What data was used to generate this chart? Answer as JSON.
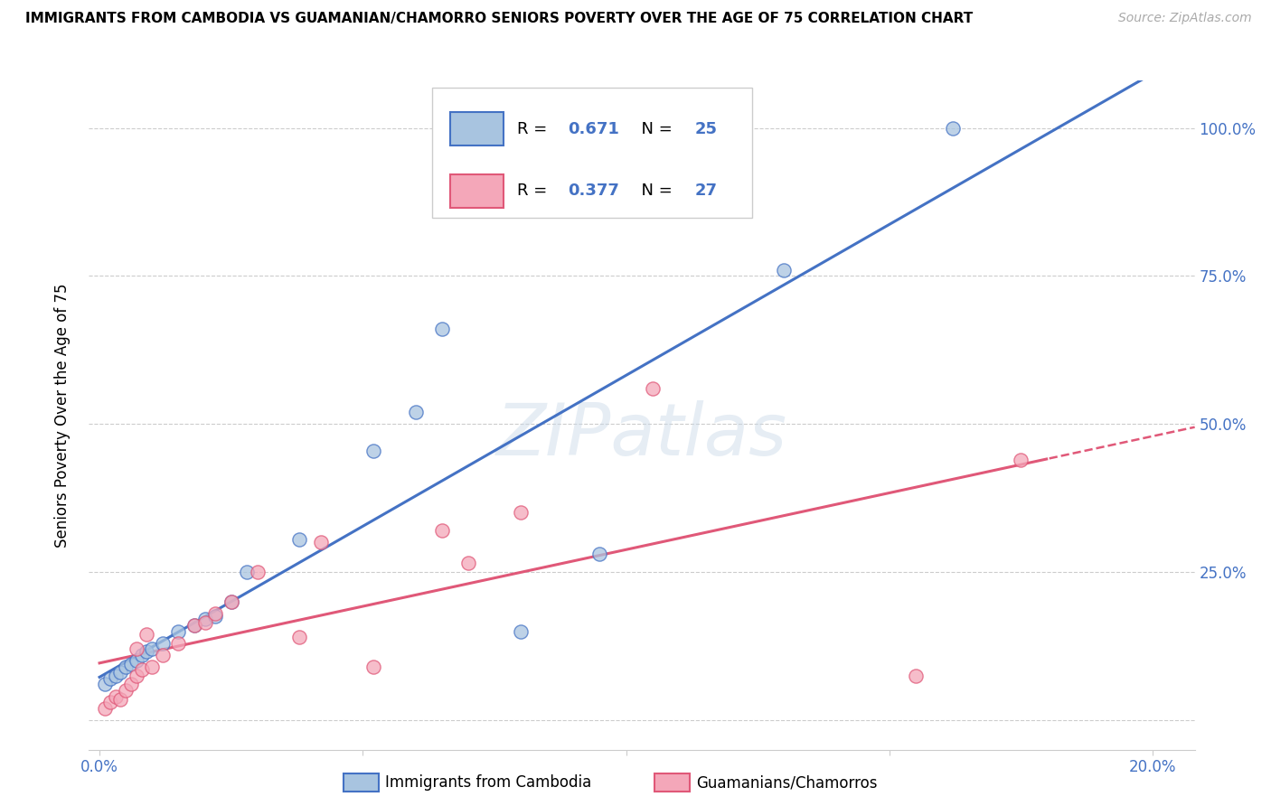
{
  "title": "IMMIGRANTS FROM CAMBODIA VS GUAMANIAN/CHAMORRO SENIORS POVERTY OVER THE AGE OF 75 CORRELATION CHART",
  "source": "Source: ZipAtlas.com",
  "ylabel": "Seniors Poverty Over the Age of 75",
  "xlabel_ticks": [
    "0.0%",
    "",
    "",
    "",
    "20.0%"
  ],
  "xlabel_vals": [
    0.0,
    0.05,
    0.1,
    0.15,
    0.2
  ],
  "ylabel_ticks_right": [
    "100.0%",
    "75.0%",
    "50.0%",
    "25.0%",
    ""
  ],
  "ylabel_vals": [
    1.0,
    0.75,
    0.5,
    0.25,
    0.0
  ],
  "xlim": [
    -0.002,
    0.208
  ],
  "ylim": [
    -0.05,
    1.08
  ],
  "R_cambodia": 0.671,
  "N_cambodia": 25,
  "R_guamanian": 0.377,
  "N_guamanian": 27,
  "legend1_label": "Immigrants from Cambodia",
  "legend2_label": "Guamanians/Chamorros",
  "watermark": "ZIPatlas",
  "cambodia_color": "#a8c4e0",
  "guamanian_color": "#f4a7b9",
  "cambodia_line_color": "#4472c4",
  "guamanian_line_color": "#e05878",
  "cambodia_scatter_x": [
    0.001,
    0.002,
    0.003,
    0.004,
    0.005,
    0.006,
    0.007,
    0.008,
    0.009,
    0.01,
    0.012,
    0.015,
    0.018,
    0.02,
    0.022,
    0.025,
    0.028,
    0.038,
    0.052,
    0.06,
    0.065,
    0.08,
    0.095,
    0.13,
    0.162
  ],
  "cambodia_scatter_y": [
    0.06,
    0.07,
    0.075,
    0.08,
    0.09,
    0.095,
    0.1,
    0.11,
    0.115,
    0.12,
    0.13,
    0.15,
    0.16,
    0.17,
    0.175,
    0.2,
    0.25,
    0.305,
    0.455,
    0.52,
    0.66,
    0.15,
    0.28,
    0.76,
    1.0
  ],
  "guamanian_scatter_x": [
    0.001,
    0.002,
    0.003,
    0.004,
    0.005,
    0.006,
    0.007,
    0.007,
    0.008,
    0.009,
    0.01,
    0.012,
    0.015,
    0.018,
    0.02,
    0.022,
    0.025,
    0.03,
    0.038,
    0.042,
    0.052,
    0.065,
    0.07,
    0.08,
    0.105,
    0.155,
    0.175
  ],
  "guamanian_scatter_y": [
    0.02,
    0.03,
    0.04,
    0.035,
    0.05,
    0.06,
    0.075,
    0.12,
    0.085,
    0.145,
    0.09,
    0.11,
    0.13,
    0.16,
    0.165,
    0.18,
    0.2,
    0.25,
    0.14,
    0.3,
    0.09,
    0.32,
    0.265,
    0.35,
    0.56,
    0.075,
    0.44
  ]
}
